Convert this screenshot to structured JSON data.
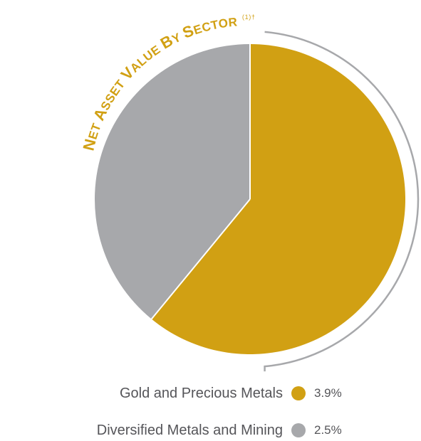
{
  "chart_data": {
    "type": "pie",
    "title": "Net Asset Value by Sector",
    "title_superscript": "(1)†",
    "categories": [
      "Gold and Precious Metals",
      "Diversified Metals and Mining"
    ],
    "values": [
      3.9,
      2.5
    ],
    "value_labels": [
      "3.9%",
      "2.5%"
    ],
    "colors": [
      "#d1a013",
      "#a7a8ab"
    ],
    "legend_placement": "bottom"
  }
}
